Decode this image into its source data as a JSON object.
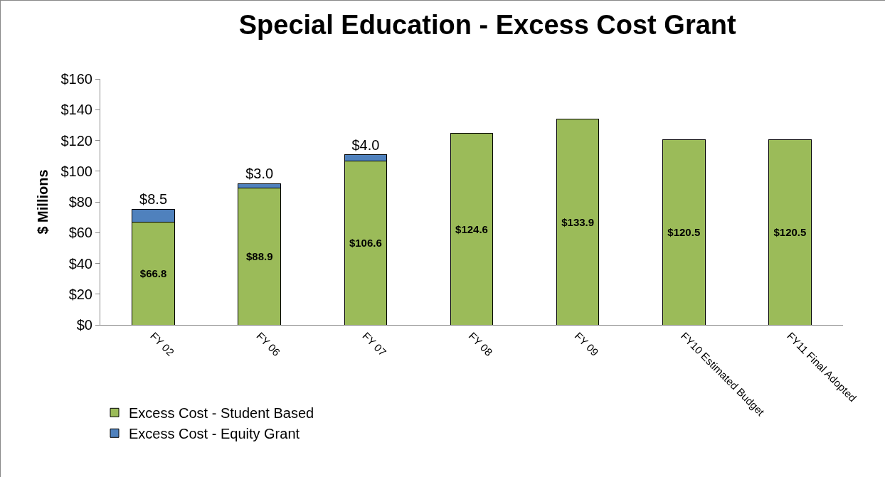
{
  "chart_data": {
    "type": "bar",
    "title": "Special Education - Excess Cost Grant",
    "ylabel": "$ Millions",
    "categories": [
      "FY 02",
      "FY 06",
      "FY 07",
      "FY 08",
      "FY 09",
      "FY10 Estimated Budget",
      "FY11 Final Adopted"
    ],
    "stacked": true,
    "series": [
      {
        "name": "Excess Cost - Student Based",
        "color": "#9bbb59",
        "values": [
          66.8,
          88.9,
          106.6,
          124.6,
          133.9,
          120.5,
          120.5
        ],
        "value_labels": [
          "$66.8",
          "$88.9",
          "$106.6",
          "$124.6",
          "$133.9",
          "$120.5",
          "$120.5"
        ]
      },
      {
        "name": "Excess Cost - Equity Grant",
        "color": "#4f81bd",
        "values": [
          8.5,
          3.0,
          4.0,
          null,
          null,
          null,
          null
        ],
        "value_labels": [
          "$8.5",
          "$3.0",
          "$4.0",
          null,
          null,
          null,
          null
        ]
      }
    ],
    "ylim": [
      0,
      160
    ],
    "yticks": [
      {
        "value": 0,
        "label": "$0"
      },
      {
        "value": 20,
        "label": "$20"
      },
      {
        "value": 40,
        "label": "$40"
      },
      {
        "value": 60,
        "label": "$60"
      },
      {
        "value": 80,
        "label": "$80"
      },
      {
        "value": 100,
        "label": "$100"
      },
      {
        "value": 120,
        "label": "$120"
      },
      {
        "value": 140,
        "label": "$140"
      },
      {
        "value": 160,
        "label": "$160"
      }
    ],
    "grid": false,
    "legend": "bottom left"
  }
}
